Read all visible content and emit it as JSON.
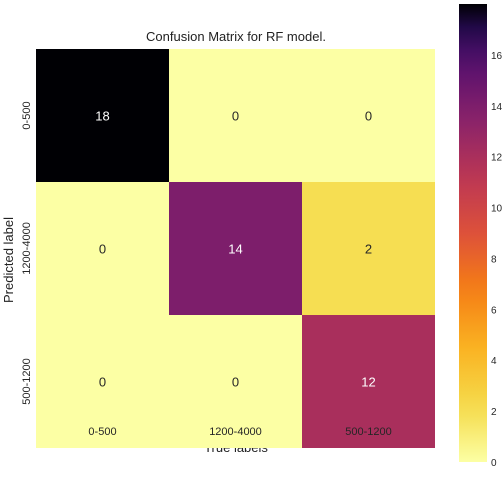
{
  "chart_data": {
    "type": "heatmap",
    "title": "Confusion Matrix for RF model.",
    "xlabel": "True labels",
    "ylabel": "Predicted label",
    "x_categories": [
      "0-500",
      "1200-4000",
      "500-1200"
    ],
    "y_categories": [
      "0-500",
      "1200-4000",
      "500-1200"
    ],
    "values": [
      [
        18,
        0,
        0
      ],
      [
        0,
        14,
        2
      ],
      [
        0,
        0,
        12
      ]
    ],
    "colormap": "inferno_r",
    "colorbar": {
      "range": [
        0,
        18
      ],
      "ticks": [
        0,
        2,
        4,
        6,
        8,
        10,
        12,
        14,
        16
      ],
      "tick_labels": [
        "0",
        "2",
        "4",
        "6",
        "8",
        "10",
        "12",
        "14",
        "16"
      ]
    }
  }
}
